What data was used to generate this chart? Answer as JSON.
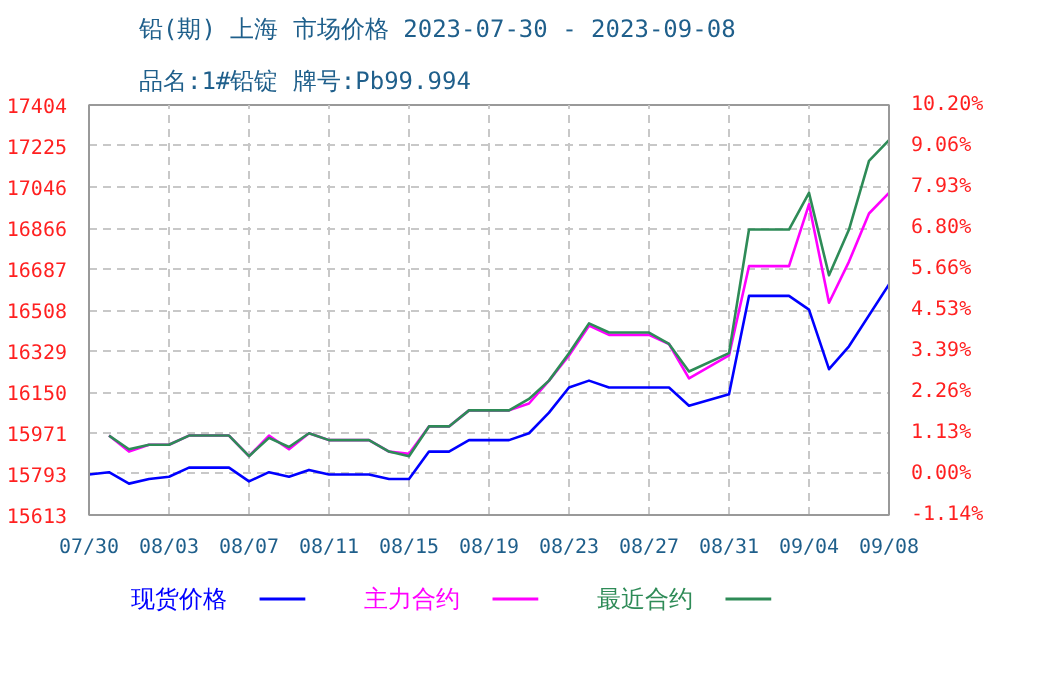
{
  "chart_data": {
    "type": "line",
    "title": "铅(期) 上海 市场价格 2023-07-30 - 2023-09-08",
    "subtitle": "品名:1#铅锭 牌号:Pb99.994",
    "series": [
      {
        "name": "现货价格",
        "color": "#0000ff",
        "x": [
          "2023-07-30",
          "2023-07-31",
          "2023-08-01",
          "2023-08-02",
          "2023-08-03",
          "2023-08-04",
          "2023-08-06",
          "2023-08-07",
          "2023-08-08",
          "2023-08-09",
          "2023-08-10",
          "2023-08-11",
          "2023-08-13",
          "2023-08-14",
          "2023-08-15",
          "2023-08-16",
          "2023-08-17",
          "2023-08-18",
          "2023-08-20",
          "2023-08-21",
          "2023-08-22",
          "2023-08-23",
          "2023-08-24",
          "2023-08-25",
          "2023-08-28",
          "2023-08-29",
          "2023-08-31",
          "2023-09-01",
          "2023-09-03",
          "2023-09-04",
          "2023-09-05",
          "2023-09-06",
          "2023-09-08"
        ],
        "values": [
          15790,
          15800,
          15750,
          15770,
          15780,
          15820,
          15820,
          15760,
          15800,
          15780,
          15810,
          15790,
          15790,
          15770,
          15770,
          15890,
          15890,
          15940,
          15940,
          15970,
          16060,
          16170,
          16200,
          16170,
          16170,
          16090,
          16140,
          16570,
          16570,
          16510,
          16250,
          16350,
          16620
        ]
      },
      {
        "name": "主力合约",
        "color": "#ff00ff",
        "x": [
          "2023-07-31",
          "2023-08-01",
          "2023-08-02",
          "2023-08-03",
          "2023-08-04",
          "2023-08-06",
          "2023-08-07",
          "2023-08-08",
          "2023-08-09",
          "2023-08-10",
          "2023-08-11",
          "2023-08-13",
          "2023-08-14",
          "2023-08-15",
          "2023-08-16",
          "2023-08-17",
          "2023-08-18",
          "2023-08-20",
          "2023-08-21",
          "2023-08-22",
          "2023-08-23",
          "2023-08-24",
          "2023-08-25",
          "2023-08-27",
          "2023-08-28",
          "2023-08-29",
          "2023-08-31",
          "2023-09-01",
          "2023-09-03",
          "2023-09-04",
          "2023-09-05",
          "2023-09-06",
          "2023-09-07",
          "2023-09-08"
        ],
        "values": [
          15960,
          15890,
          15920,
          15920,
          15960,
          15960,
          15870,
          15960,
          15900,
          15970,
          15940,
          15940,
          15890,
          15880,
          16000,
          16000,
          16070,
          16070,
          16100,
          16200,
          16310,
          16440,
          16400,
          16400,
          16360,
          16210,
          16310,
          16700,
          16700,
          16970,
          16540,
          16720,
          16930,
          17020
        ]
      },
      {
        "name": "最近合约",
        "color": "#2e8b57",
        "x": [
          "2023-07-31",
          "2023-08-01",
          "2023-08-02",
          "2023-08-03",
          "2023-08-04",
          "2023-08-06",
          "2023-08-07",
          "2023-08-08",
          "2023-08-09",
          "2023-08-10",
          "2023-08-11",
          "2023-08-13",
          "2023-08-14",
          "2023-08-15",
          "2023-08-16",
          "2023-08-17",
          "2023-08-18",
          "2023-08-20",
          "2023-08-21",
          "2023-08-22",
          "2023-08-23",
          "2023-08-24",
          "2023-08-25",
          "2023-08-27",
          "2023-08-28",
          "2023-08-29",
          "2023-08-31",
          "2023-09-01",
          "2023-09-03",
          "2023-09-04",
          "2023-09-05",
          "2023-09-06",
          "2023-09-07",
          "2023-09-08"
        ],
        "values": [
          15960,
          15900,
          15920,
          15920,
          15960,
          15960,
          15870,
          15950,
          15910,
          15970,
          15940,
          15940,
          15890,
          15870,
          16000,
          16000,
          16070,
          16070,
          16120,
          16200,
          16320,
          16450,
          16410,
          16410,
          16360,
          16240,
          16320,
          16860,
          16860,
          17020,
          16660,
          16860,
          17160,
          17250
        ]
      }
    ],
    "xlim": [
      "2023-07-30",
      "2023-09-08"
    ],
    "xticks": [
      {
        "value": "2023-07-30",
        "label": "07/30"
      },
      {
        "value": "2023-08-03",
        "label": "08/03"
      },
      {
        "value": "2023-08-07",
        "label": "08/07"
      },
      {
        "value": "2023-08-11",
        "label": "08/11"
      },
      {
        "value": "2023-08-15",
        "label": "08/15"
      },
      {
        "value": "2023-08-19",
        "label": "08/19"
      },
      {
        "value": "2023-08-23",
        "label": "08/23"
      },
      {
        "value": "2023-08-27",
        "label": "08/27"
      },
      {
        "value": "2023-08-31",
        "label": "08/31"
      },
      {
        "value": "2023-09-04",
        "label": "09/04"
      },
      {
        "value": "2023-09-08",
        "label": "09/08"
      }
    ],
    "ylim": [
      15613,
      17404
    ],
    "yticks": [
      15613,
      15793,
      15971,
      16150,
      16329,
      16508,
      16687,
      16866,
      17046,
      17225,
      17404
    ],
    "y2lim": [
      -1.14,
      10.2
    ],
    "y2ticks": [
      {
        "value": -1.14,
        "label": "-1.14%"
      },
      {
        "value": 0,
        "label": "0.00%"
      },
      {
        "value": 1.13,
        "label": "1.13%"
      },
      {
        "value": 2.26,
        "label": "2.26%"
      },
      {
        "value": 3.39,
        "label": "3.39%"
      },
      {
        "value": 4.53,
        "label": "4.53%"
      },
      {
        "value": 5.66,
        "label": "5.66%"
      },
      {
        "value": 6.8,
        "label": "6.80%"
      },
      {
        "value": 7.93,
        "label": "7.93%"
      },
      {
        "value": 9.06,
        "label": "9.06%"
      },
      {
        "value": 10.2,
        "label": "10.20%"
      }
    ],
    "grid": true,
    "legend": "bottom",
    "line_style": "solid"
  }
}
